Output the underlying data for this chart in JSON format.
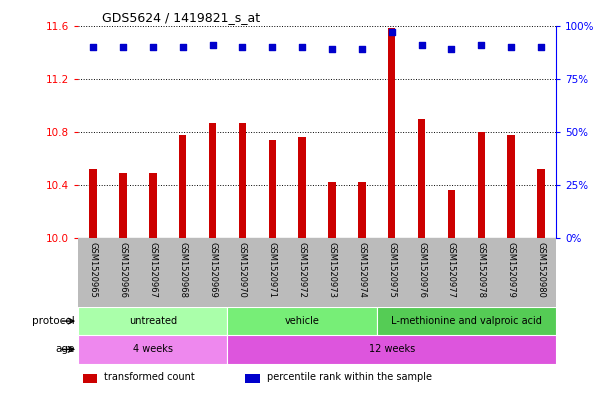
{
  "title": "GDS5624 / 1419821_s_at",
  "samples": [
    "GSM1520965",
    "GSM1520966",
    "GSM1520967",
    "GSM1520968",
    "GSM1520969",
    "GSM1520970",
    "GSM1520971",
    "GSM1520972",
    "GSM1520973",
    "GSM1520974",
    "GSM1520975",
    "GSM1520976",
    "GSM1520977",
    "GSM1520978",
    "GSM1520979",
    "GSM1520980"
  ],
  "transformed_count": [
    10.52,
    10.49,
    10.49,
    10.78,
    10.87,
    10.87,
    10.74,
    10.76,
    10.42,
    10.42,
    11.58,
    10.9,
    10.36,
    10.8,
    10.78,
    10.52
  ],
  "percentile_rank": [
    90,
    90,
    90,
    90,
    91,
    90,
    90,
    90,
    89,
    89,
    97,
    91,
    89,
    91,
    90,
    90
  ],
  "ylim_left": [
    10.0,
    11.6
  ],
  "ylim_right": [
    0,
    100
  ],
  "yticks_left": [
    10.0,
    10.4,
    10.8,
    11.2,
    11.6
  ],
  "yticks_right": [
    0,
    25,
    50,
    75,
    100
  ],
  "bar_color": "#cc0000",
  "dot_color": "#0000cc",
  "protocol_groups": [
    {
      "label": "untreated",
      "start": 0,
      "end": 5,
      "color": "#aaffaa"
    },
    {
      "label": "vehicle",
      "start": 5,
      "end": 10,
      "color": "#77ee77"
    },
    {
      "label": "L-methionine and valproic acid",
      "start": 10,
      "end": 16,
      "color": "#55cc55"
    }
  ],
  "age_groups": [
    {
      "label": "4 weeks",
      "start": 0,
      "end": 5,
      "color": "#ee88ee"
    },
    {
      "label": "12 weeks",
      "start": 5,
      "end": 16,
      "color": "#dd55dd"
    }
  ],
  "legend_items": [
    {
      "color": "#cc0000",
      "label": "transformed count"
    },
    {
      "color": "#0000cc",
      "label": "percentile rank within the sample"
    }
  ],
  "bg_color": "#ffffff",
  "tick_area_color": "#bbbbbb"
}
